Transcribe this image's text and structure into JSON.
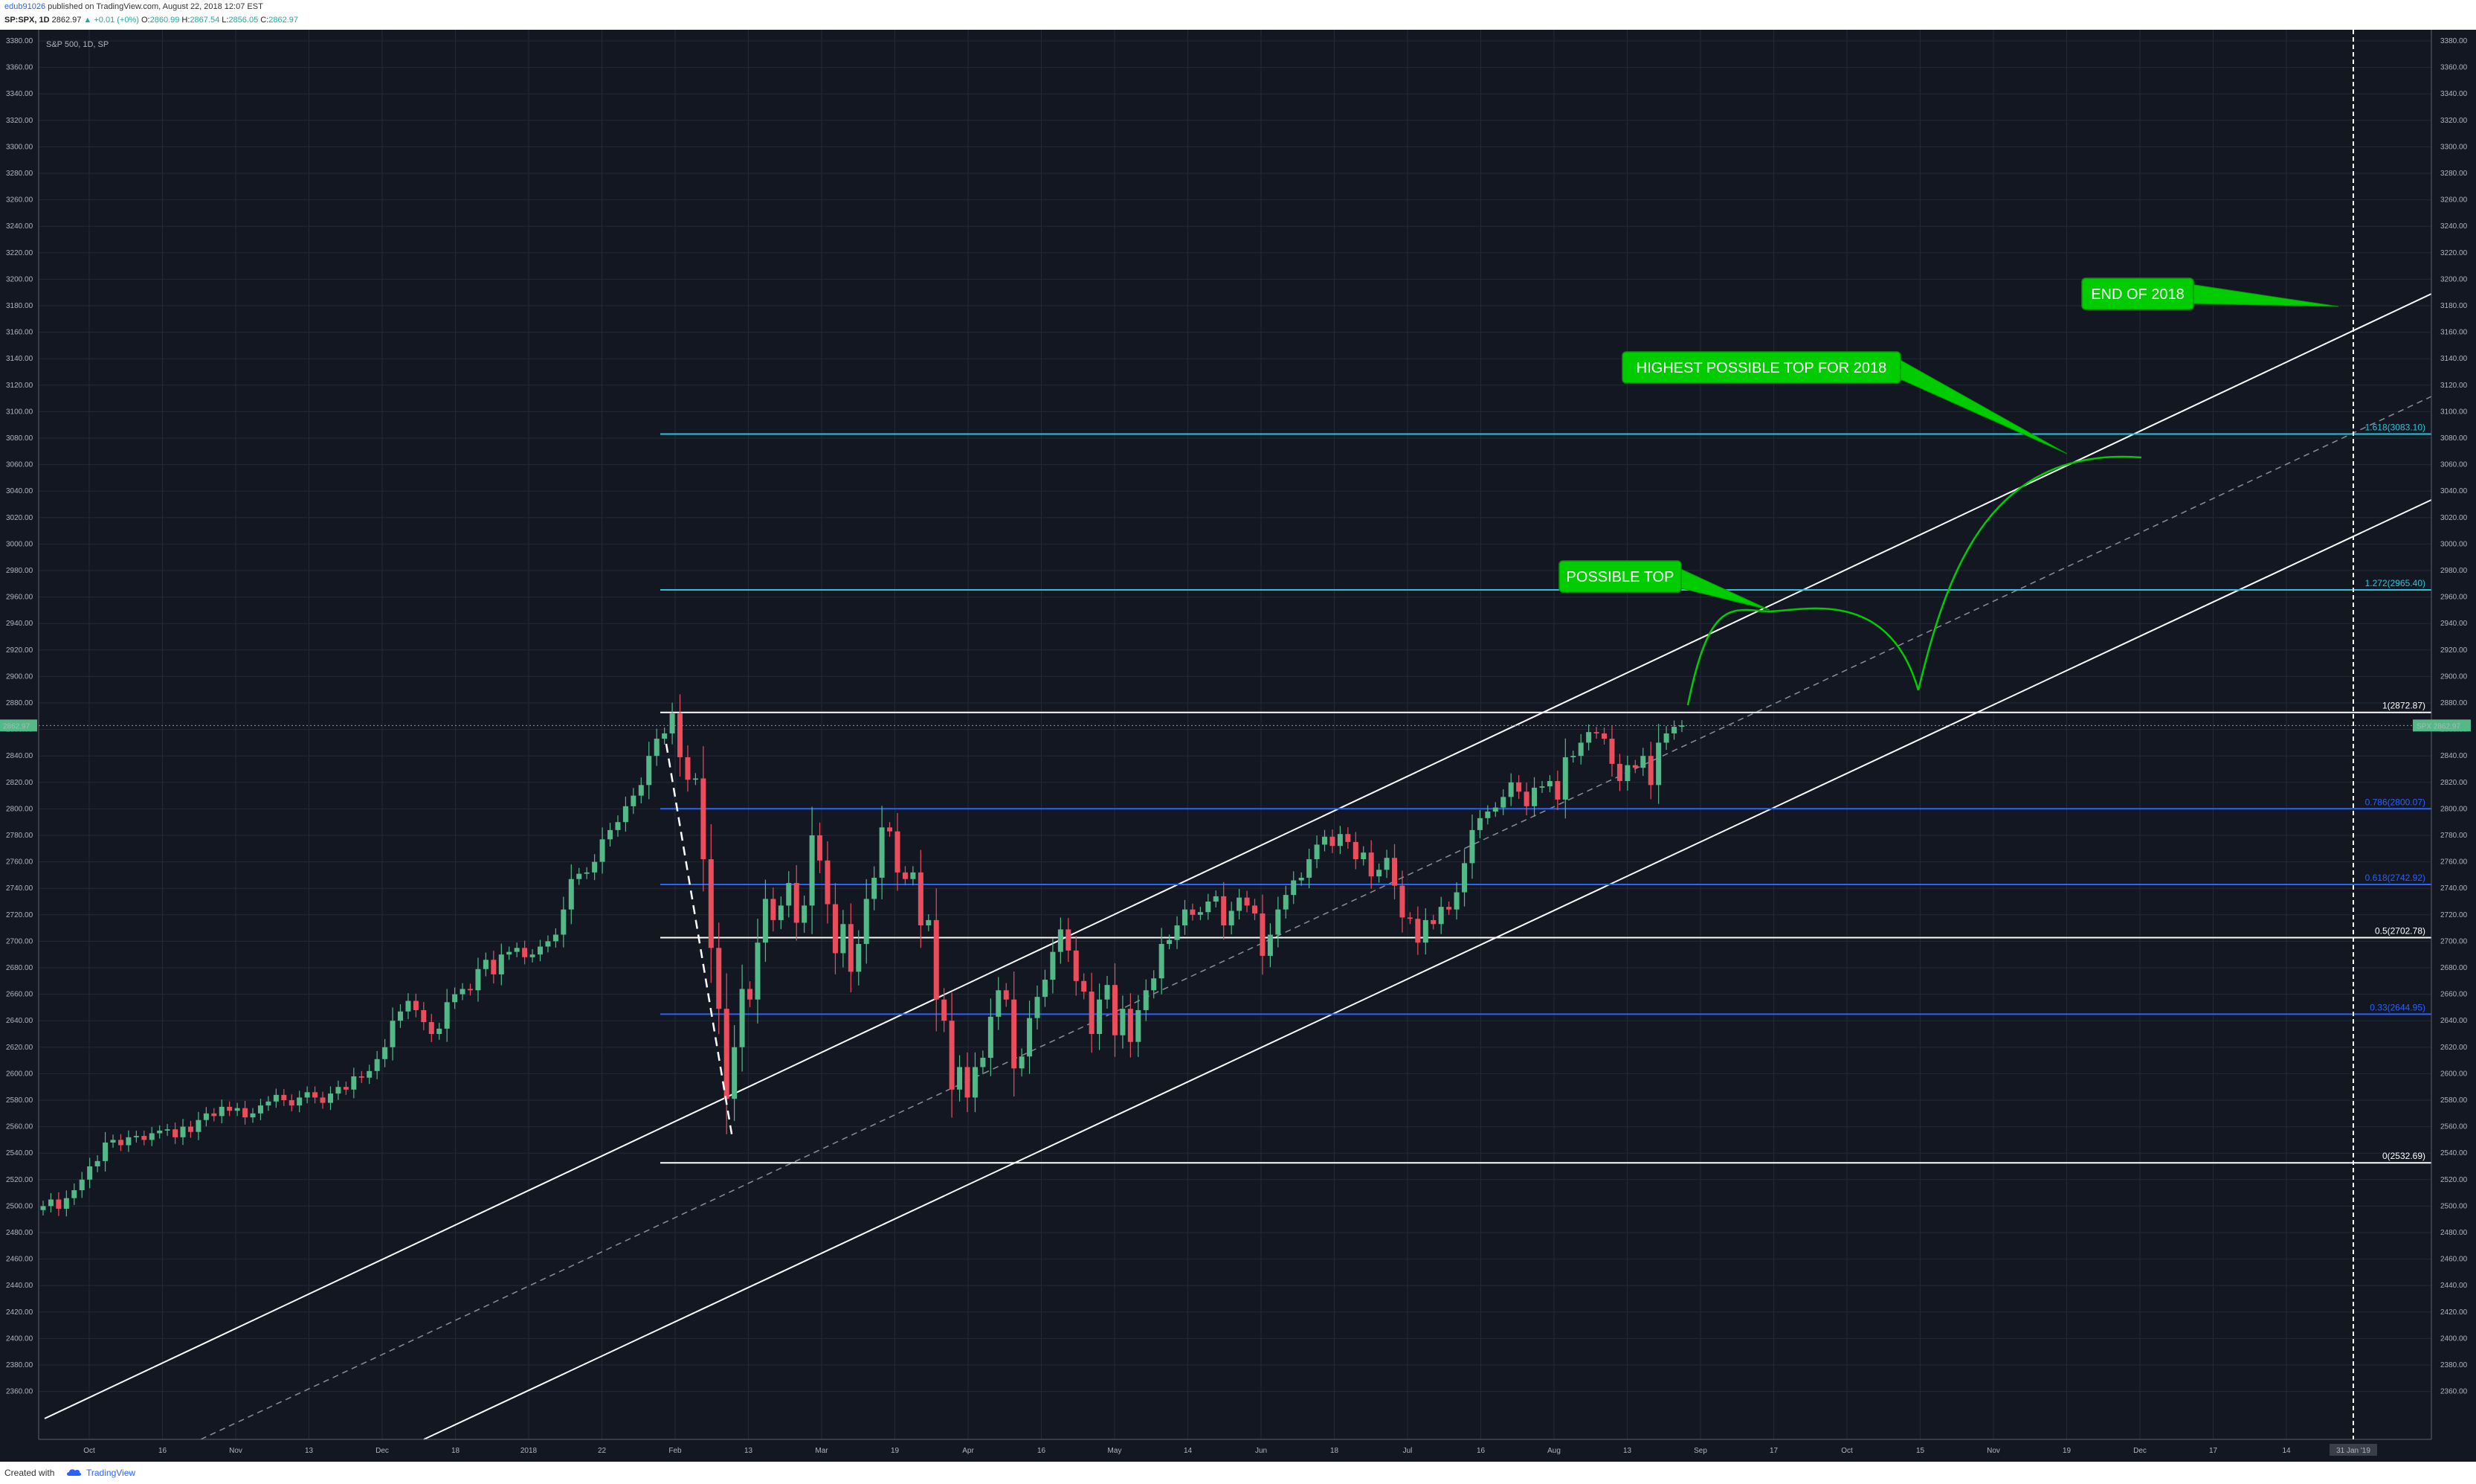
{
  "header": {
    "author": "edub91026",
    "published_text": "published on TradingView.com, August 22, 2018 12:07 EST",
    "symbol": "SP:SPX, 1D",
    "last": "2862.97",
    "change": "▲ +0.01 (+0%)",
    "o_label": "O:",
    "o": "2860.99",
    "h_label": "H:",
    "h": "2867.54",
    "l_label": "L:",
    "l": "2856.05",
    "c_label": "C:",
    "c": "2862.97"
  },
  "chart_title": "S&P 500, 1D, SP",
  "annotations": {
    "possible_top": "POSSIBLE TOP",
    "highest_top": "HIGHEST POSSIBLE TOP FOR 2018",
    "end_2018": "END OF 2018"
  },
  "price_tag": "2862.97",
  "price_tag_right": "SPX 2862.97",
  "date_marker": "31 Jan '19",
  "footer": {
    "created_with": "Created with",
    "brand": "TradingView"
  },
  "colors": {
    "background": "#131722",
    "up_candle": "#53b987",
    "down_candle": "#eb4d5c",
    "fib_cyan": "#26c6da",
    "fib_blue": "#2962ff",
    "annotation_green": "#00cc00",
    "channel": "#ffffff"
  },
  "chart_data": {
    "type": "candlestick",
    "title": "S&P 500, 1D, SP",
    "xlabel": "",
    "ylabel": "",
    "ylim": [
      2360,
      3400
    ],
    "y_ticks": [
      2360,
      2380,
      2400,
      2420,
      2440,
      2460,
      2480,
      2500,
      2520,
      2540,
      2560,
      2580,
      2600,
      2620,
      2640,
      2660,
      2680,
      2700,
      2720,
      2740,
      2760,
      2780,
      2800,
      2820,
      2840,
      2860,
      2880,
      2900,
      2920,
      2940,
      2960,
      2980,
      3000,
      3020,
      3040,
      3060,
      3080,
      3100,
      3120,
      3140,
      3160,
      3180,
      3200,
      3220,
      3240,
      3260,
      3280,
      3300,
      3320,
      3340,
      3360,
      3380
    ],
    "x_ticks": [
      "Oct",
      "16",
      "Nov",
      "13",
      "Dec",
      "18",
      "2018",
      "22",
      "Feb",
      "13",
      "Mar",
      "19",
      "Apr",
      "16",
      "May",
      "14",
      "Jun",
      "18",
      "Jul",
      "16",
      "Aug",
      "13",
      "Sep",
      "17",
      "Oct",
      "15",
      "Nov",
      "19",
      "Dec",
      "17",
      "14"
    ],
    "grid": true,
    "fib_levels": [
      {
        "label": "0(2532.69)",
        "value": 2532.69,
        "color": "#ffffff"
      },
      {
        "label": "0.33(2644.95)",
        "value": 2644.95,
        "color": "#2962ff"
      },
      {
        "label": "0.5(2702.78)",
        "value": 2702.78,
        "color": "#ffffff"
      },
      {
        "label": "0.618(2742.92)",
        "value": 2742.92,
        "color": "#2962ff"
      },
      {
        "label": "0.786(2800.07)",
        "value": 2800.07,
        "color": "#2962ff"
      },
      {
        "label": "1(2872.87)",
        "value": 2872.87,
        "color": "#ffffff"
      },
      {
        "label": "1.272(2965.40)",
        "value": 2965.4,
        "color": "#26c6da"
      },
      {
        "label": "1.618(3083.10)",
        "value": 3083.1,
        "color": "#26c6da"
      }
    ],
    "closes": [
      2500,
      2505,
      2498,
      2506,
      2512,
      2520,
      2530,
      2534,
      2548,
      2550,
      2546,
      2552,
      2553,
      2550,
      2555,
      2557,
      2558,
      2552,
      2560,
      2556,
      2565,
      2570,
      2568,
      2575,
      2572,
      2574,
      2567,
      2570,
      2576,
      2579,
      2584,
      2580,
      2576,
      2582,
      2586,
      2582,
      2578,
      2585,
      2590,
      2588,
      2598,
      2597,
      2602,
      2611,
      2620,
      2640,
      2647,
      2655,
      2648,
      2639,
      2630,
      2634,
      2654,
      2660,
      2664,
      2663,
      2679,
      2686,
      2675,
      2690,
      2692,
      2695,
      2688,
      2690,
      2696,
      2700,
      2705,
      2724,
      2747,
      2751,
      2752,
      2760,
      2777,
      2784,
      2790,
      2802,
      2810,
      2818,
      2840,
      2853,
      2857,
      2872,
      2839,
      2822,
      2823,
      2762,
      2695,
      2649,
      2581,
      2620,
      2664,
      2656,
      2699,
      2732,
      2716,
      2727,
      2744,
      2714,
      2727,
      2780,
      2761,
      2728,
      2691,
      2713,
      2677,
      2698,
      2732,
      2748,
      2786,
      2783,
      2752,
      2747,
      2752,
      2712,
      2716,
      2656,
      2640,
      2588,
      2605,
      2582,
      2605,
      2612,
      2643,
      2663,
      2656,
      2604,
      2613,
      2642,
      2658,
      2671,
      2692,
      2709,
      2693,
      2670,
      2662,
      2630,
      2656,
      2667,
      2629,
      2649,
      2624,
      2648,
      2663,
      2672,
      2698,
      2701,
      2712,
      2724,
      2720,
      2722,
      2730,
      2734,
      2712,
      2723,
      2733,
      2727,
      2721,
      2689,
      2705,
      2724,
      2735,
      2746,
      2748,
      2762,
      2773,
      2779,
      2772,
      2781,
      2775,
      2762,
      2767,
      2749,
      2754,
      2763,
      2742,
      2718,
      2717,
      2699,
      2716,
      2713,
      2726,
      2724,
      2737,
      2759,
      2784,
      2793,
      2798,
      2801,
      2809,
      2820,
      2813,
      2802,
      2816,
      2817,
      2821,
      2807,
      2839,
      2840,
      2850,
      2858,
      2857,
      2853,
      2834,
      2821,
      2833,
      2831,
      2840,
      2818,
      2850,
      2857,
      2862,
      2863
    ]
  }
}
